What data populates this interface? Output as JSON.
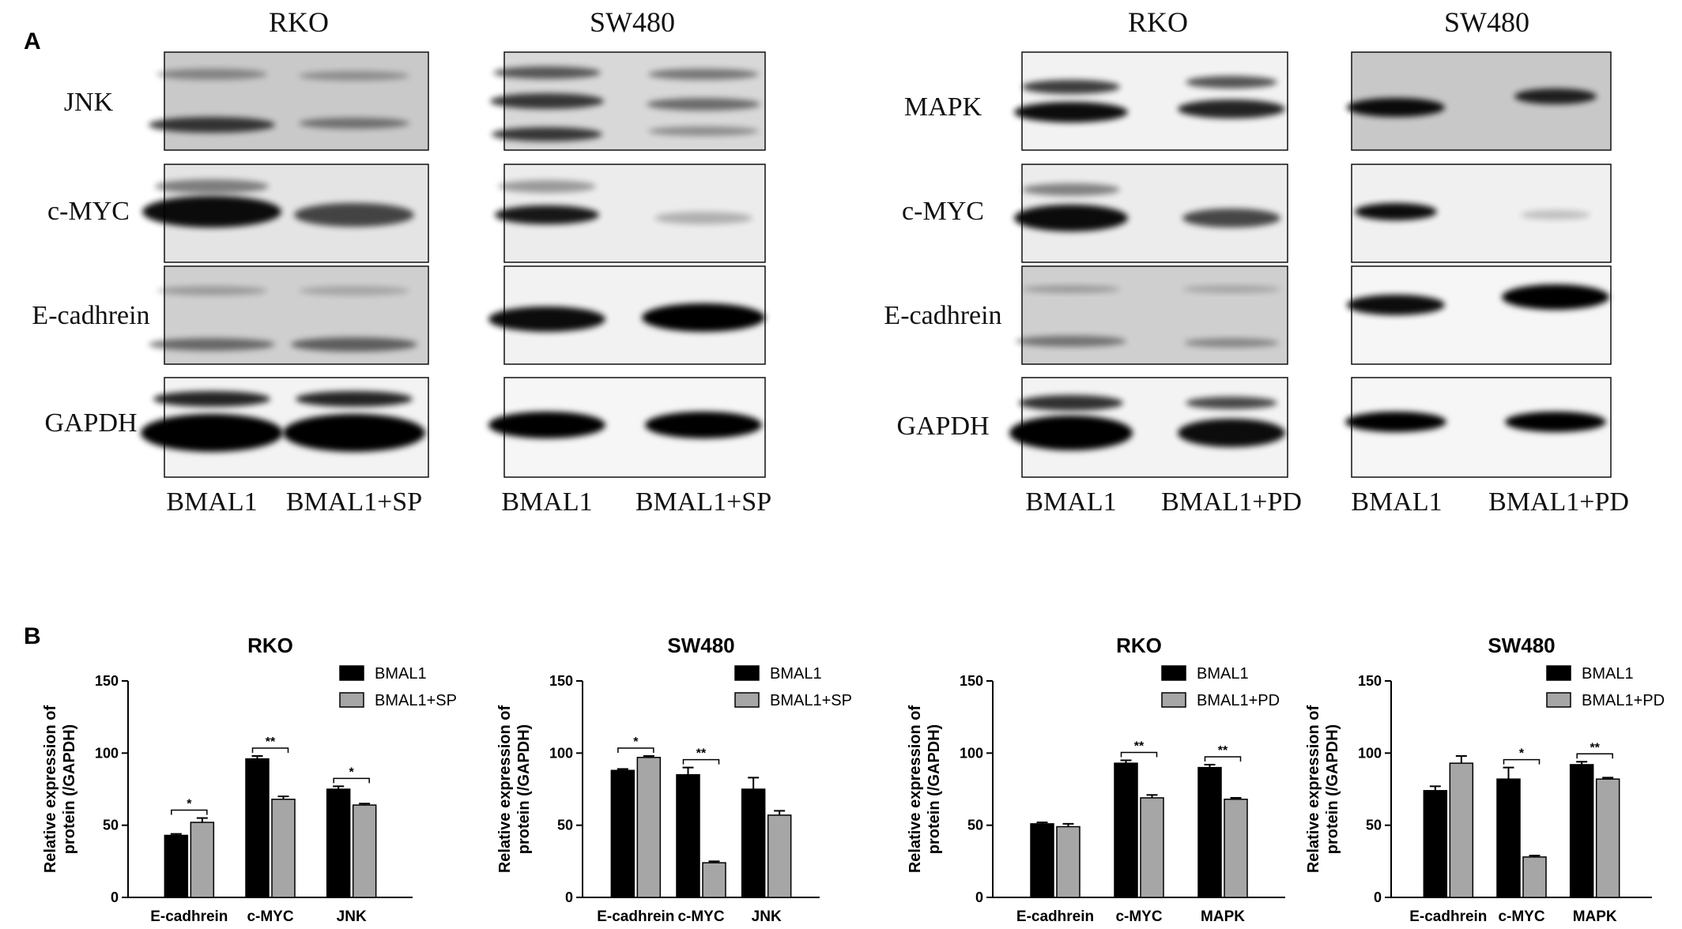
{
  "panel_a": {
    "label": "A",
    "groups": [
      {
        "cell_lines": [
          "RKO",
          "SW480"
        ],
        "proteins": [
          "JNK",
          "c-MYC",
          "E-cadhrein",
          "GAPDH"
        ],
        "lanes": [
          [
            "BMAL1",
            "BMAL1+SP"
          ],
          [
            "BMAL1",
            "BMAL1+SP"
          ]
        ]
      },
      {
        "cell_lines": [
          "RKO",
          "SW480"
        ],
        "proteins": [
          "MAPK",
          "c-MYC",
          "E-cadhrein",
          "GAPDH"
        ],
        "lanes": [
          [
            "BMAL1",
            "BMAL1+PD"
          ],
          [
            "BMAL1",
            "BMAL1+PD"
          ]
        ]
      }
    ]
  },
  "panel_b": {
    "label": "B"
  },
  "colors": {
    "series1": "#000000",
    "series2": "#a6a6a6"
  },
  "chart_data": [
    {
      "type": "bar",
      "title": "RKO",
      "ylabel_lines": [
        "Relative expression of",
        "protein (/GAPDH)"
      ],
      "categories": [
        "E-cadhrein",
        "c-MYC",
        "JNK"
      ],
      "ylim": [
        0,
        150
      ],
      "yticks": [
        "0",
        "50",
        "100",
        "150"
      ],
      "legend_position": "top-right",
      "series": [
        {
          "name": "BMAL1",
          "values": [
            43,
            96,
            75
          ],
          "errors": [
            1,
            2,
            2
          ]
        },
        {
          "name": "BMAL1+SP",
          "values": [
            52,
            68,
            64
          ],
          "errors": [
            3,
            2,
            1
          ]
        }
      ],
      "significance": [
        "*",
        "**",
        "*"
      ]
    },
    {
      "type": "bar",
      "title": "SW480",
      "ylabel_lines": [
        "Relative expression of",
        "protein (/GAPDH)"
      ],
      "categories": [
        "E-cadhrein",
        "c-MYC",
        "JNK"
      ],
      "ylim": [
        0,
        150
      ],
      "yticks": [
        "0",
        "50",
        "100",
        "150"
      ],
      "legend_position": "top-right",
      "series": [
        {
          "name": "BMAL1",
          "values": [
            88,
            85,
            75
          ],
          "errors": [
            1,
            5,
            8
          ]
        },
        {
          "name": "BMAL1+SP",
          "values": [
            97,
            24,
            57
          ],
          "errors": [
            1,
            1,
            3
          ]
        }
      ],
      "significance": [
        "*",
        "**",
        ""
      ]
    },
    {
      "type": "bar",
      "title": "RKO",
      "ylabel_lines": [
        "Relative expression of",
        "protein (/GAPDH)"
      ],
      "categories": [
        "E-cadhrein",
        "c-MYC",
        "MAPK"
      ],
      "ylim": [
        0,
        150
      ],
      "yticks": [
        "0",
        "50",
        "100",
        "150"
      ],
      "legend_position": "top-right",
      "series": [
        {
          "name": "BMAL1",
          "values": [
            51,
            93,
            90
          ],
          "errors": [
            1,
            2,
            2
          ]
        },
        {
          "name": "BMAL1+PD",
          "values": [
            49,
            69,
            68
          ],
          "errors": [
            2,
            2,
            1
          ]
        }
      ],
      "significance": [
        "",
        "**",
        "**"
      ]
    },
    {
      "type": "bar",
      "title": "SW480",
      "ylabel_lines": [
        "Relative expression of",
        "protein (/GAPDH)"
      ],
      "categories": [
        "E-cadhrein",
        "c-MYC",
        "MAPK"
      ],
      "ylim": [
        0,
        150
      ],
      "yticks": [
        "0",
        "50",
        "100",
        "150"
      ],
      "legend_position": "top-right",
      "series": [
        {
          "name": "BMAL1",
          "values": [
            74,
            82,
            92
          ],
          "errors": [
            3,
            8,
            2
          ]
        },
        {
          "name": "BMAL1+PD",
          "values": [
            93,
            28,
            82
          ],
          "errors": [
            5,
            1,
            1
          ]
        }
      ],
      "significance": [
        "",
        "*",
        "**"
      ]
    }
  ]
}
